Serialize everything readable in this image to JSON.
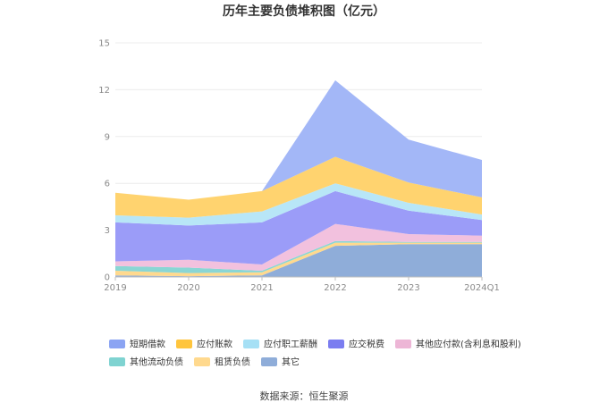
{
  "chart_data": {
    "type": "area",
    "stacked": true,
    "title": "历年主要负债堆积图（亿元）",
    "source": "数据来源：恒生聚源",
    "categories": [
      "2019",
      "2020",
      "2021",
      "2022",
      "2023",
      "2024Q1"
    ],
    "ylim": [
      0,
      15
    ],
    "yticks": [
      "0",
      "3",
      "6",
      "9",
      "12",
      "15"
    ],
    "grid": true,
    "legend_position": "bottom",
    "series": [
      {
        "name": "其它",
        "color": "#8fadd9",
        "values": [
          0.1,
          0.05,
          0.1,
          2.0,
          2.1,
          2.1
        ]
      },
      {
        "name": "租赁负债",
        "color": "#ffd98e",
        "values": [
          0.3,
          0.2,
          0.2,
          0.2,
          0.1,
          0.1
        ]
      },
      {
        "name": "其他流动负债",
        "color": "#8ad6d4",
        "values": [
          0.3,
          0.35,
          0.1,
          0.1,
          0.05,
          0.05
        ]
      },
      {
        "name": "其他应付款(含利息和股利)",
        "color": "#f2c1de",
        "values": [
          0.3,
          0.5,
          0.4,
          1.1,
          0.5,
          0.4
        ]
      },
      {
        "name": "应交税费",
        "color": "#9b9cf8",
        "values": [
          2.5,
          2.2,
          2.7,
          2.1,
          1.5,
          1.0
        ]
      },
      {
        "name": "应付职工薪酬",
        "color": "#b8e6f7",
        "values": [
          0.45,
          0.5,
          0.7,
          0.5,
          0.5,
          0.35
        ]
      },
      {
        "name": "应付账款",
        "color": "#ffd36f",
        "values": [
          1.45,
          1.15,
          1.3,
          1.7,
          1.3,
          1.1
        ]
      },
      {
        "name": "短期借款",
        "color": "#a3b7f7",
        "values": [
          0,
          0,
          0,
          4.9,
          2.75,
          2.4
        ]
      }
    ],
    "legend": [
      {
        "name": "短期借款",
        "color": "#8ba4f3"
      },
      {
        "name": "应付账款",
        "color": "#ffc53d"
      },
      {
        "name": "应付职工薪酬",
        "color": "#a6e0f5"
      },
      {
        "name": "应交税费",
        "color": "#7b7df0"
      },
      {
        "name": "其他应付款(含利息和股利)",
        "color": "#edb6d6"
      },
      {
        "name": "其他流动负债",
        "color": "#7fd3d1"
      },
      {
        "name": "租赁负债",
        "color": "#ffd98e"
      },
      {
        "name": "其它",
        "color": "#8fadd9"
      }
    ]
  }
}
